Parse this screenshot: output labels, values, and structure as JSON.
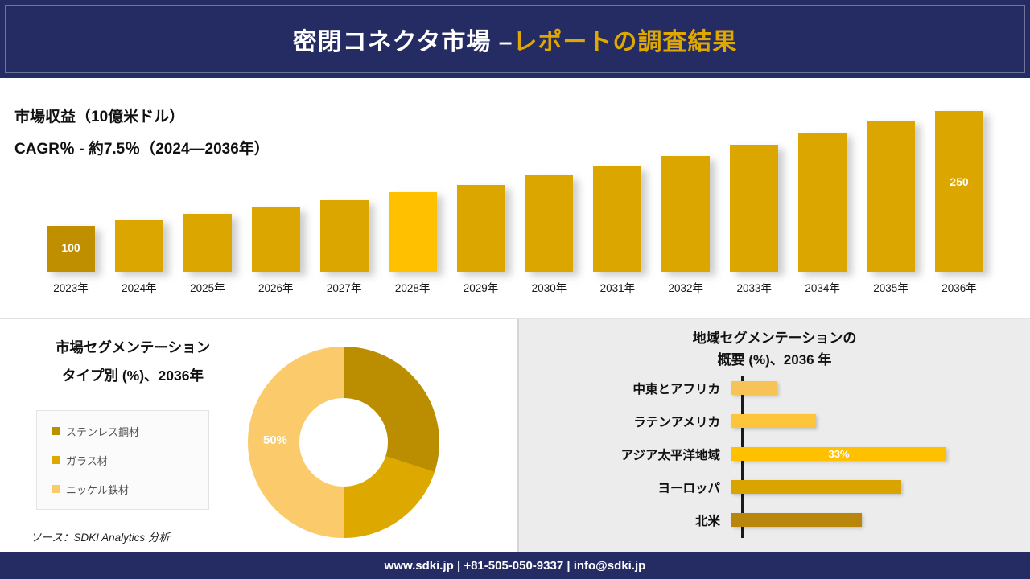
{
  "header": {
    "title_main": "密閉コネクタ市場 –",
    "title_accent": "レポートの調査結果"
  },
  "revenue_section": {
    "metric_label": "市場収益（10億米ドル）",
    "cagr_label": "CAGR％ - 約7.5％（2024―2036年）"
  },
  "left_panel": {
    "title_line1": "市場セグメンテーション",
    "title_line2": "タイプ別 (%)、2036年",
    "donut_center_label": "50%",
    "source": "ソース：SDKI Analytics 分析"
  },
  "right_panel": {
    "title_line1": "地域セグメンテーションの",
    "title_line2": "概要 (%)、2036 年"
  },
  "footer": {
    "contact": "www.sdki.jp | +81-505-050-9337 | info@sdki.jp"
  },
  "colors": {
    "navy": "#252b63",
    "accent_gold": "#dfa800",
    "panel_gray": "#ececec"
  },
  "chart_data": [
    {
      "type": "bar",
      "title": "市場収益（10億米ドル）",
      "subtitle": "CAGR％ - 約7.5％（2024―2036年）",
      "categories": [
        "2023年",
        "2024年",
        "2025年",
        "2026年",
        "2027年",
        "2028年",
        "2029年",
        "2030年",
        "2031年",
        "2032年",
        "2033年",
        "2034年",
        "2035年",
        "2036年"
      ],
      "values": [
        100,
        108,
        116,
        124,
        134,
        144,
        154,
        166,
        178,
        192,
        206,
        222,
        238,
        250
      ],
      "bar_labels": [
        "100",
        "",
        "",
        "",
        "",
        "",
        "",
        "",
        "",
        "",
        "",
        "",
        "",
        "250"
      ],
      "bar_colors": [
        "#bf8f00",
        "#dca600",
        "#dca600",
        "#dca600",
        "#dca600",
        "#ffc000",
        "#dca600",
        "#dca600",
        "#dca600",
        "#dca600",
        "#dca600",
        "#dca600",
        "#dca600",
        "#dca600"
      ],
      "ylim": [
        0,
        250
      ],
      "grid": false,
      "legend": "none"
    },
    {
      "type": "pie",
      "subtype": "donut",
      "title": "市場セグメンテーション タイプ別 (%)、2036年",
      "segments": [
        {
          "label": "ステンレス鋼材",
          "value": 30,
          "color": "#ba8e00"
        },
        {
          "label": "ガラス材",
          "value": 20,
          "color": "#dda800"
        },
        {
          "label": "ニッケル鉄材",
          "value": 50,
          "color": "#fbca6b"
        }
      ],
      "data_labels": [
        {
          "segment": "ニッケル鉄材",
          "text": "50%"
        }
      ],
      "legend_position": "left"
    },
    {
      "type": "bar",
      "orientation": "horizontal",
      "title": "地域セグメンテーションの概要 (%)、2036 年",
      "categories": [
        "中東とアフリカ",
        "ラテンアメリカ",
        "アジア太平洋地域",
        "ヨーロッパ",
        "北米"
      ],
      "values": [
        7,
        13,
        33,
        26,
        20
      ],
      "bar_colors": [
        "#f6c356",
        "#fcc53b",
        "#ffc000",
        "#d9a300",
        "#b8860b"
      ],
      "data_labels": [
        {
          "category": "アジア太平洋地域",
          "text": "33%"
        }
      ],
      "xlim": [
        0,
        35
      ],
      "grid": false
    }
  ]
}
